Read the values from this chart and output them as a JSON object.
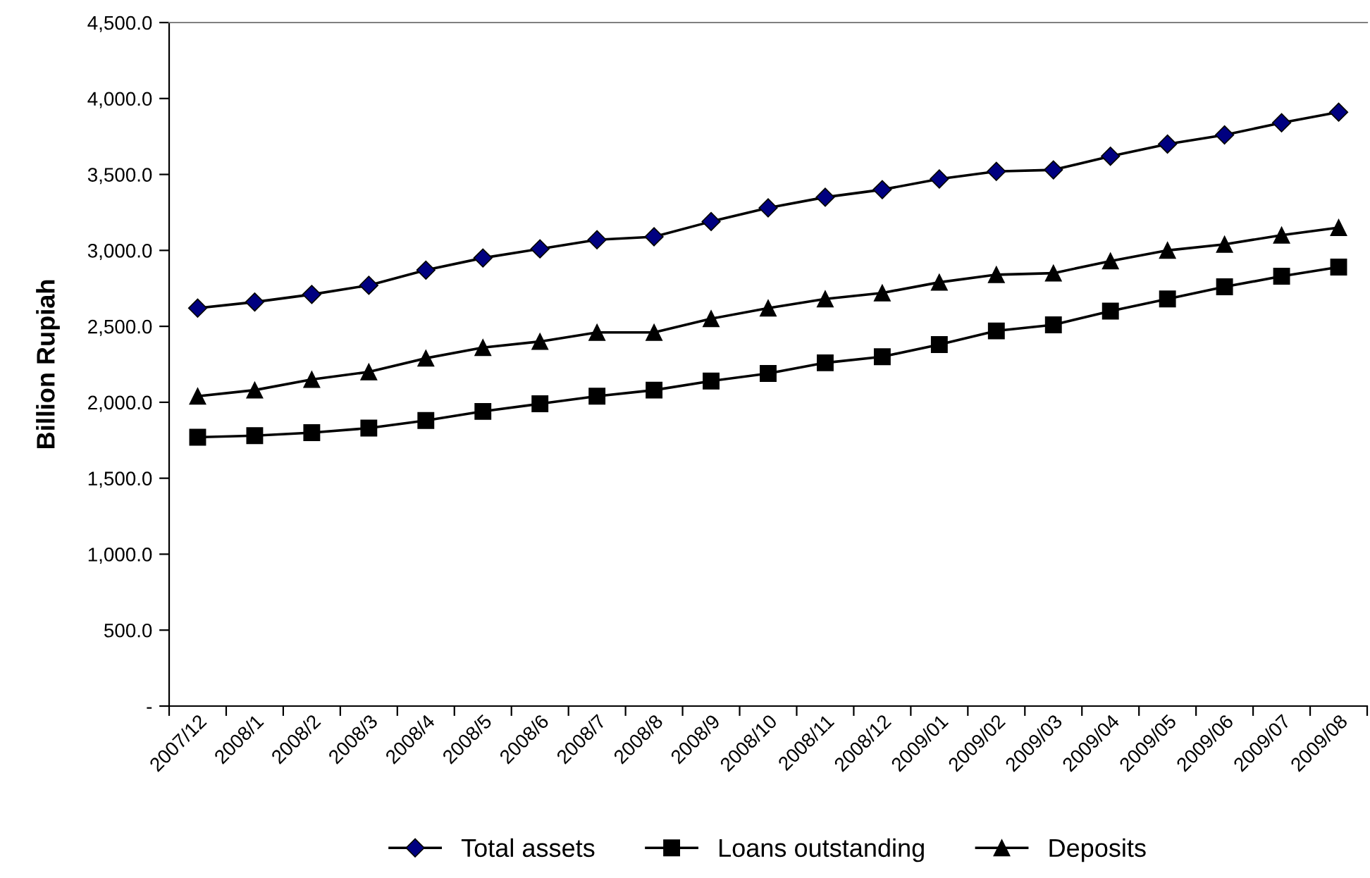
{
  "chart_data": {
    "type": "line",
    "ylabel": "Billion Rupiah",
    "categories": [
      "2007/12",
      "2008/1",
      "2008/2",
      "2008/3",
      "2008/4",
      "2008/5",
      "2008/6",
      "2008/7",
      "2008/8",
      "2008/9",
      "2008/10",
      "2008/11",
      "2008/12",
      "2009/01",
      "2009/02",
      "2009/03",
      "2009/04",
      "2009/05",
      "2009/06",
      "2009/07",
      "2009/08"
    ],
    "series": [
      {
        "name": "Total assets",
        "color": "#000080",
        "marker": "diamond",
        "values": [
          2620,
          2660,
          2710,
          2770,
          2870,
          2950,
          3010,
          3070,
          3090,
          3190,
          3280,
          3350,
          3400,
          3470,
          3520,
          3530,
          3620,
          3700,
          3760,
          3840,
          3910
        ]
      },
      {
        "name": "Loans outstanding",
        "color": "#000000",
        "marker": "square",
        "values": [
          1770,
          1780,
          1800,
          1830,
          1880,
          1940,
          1990,
          2040,
          2080,
          2140,
          2190,
          2260,
          2300,
          2380,
          2470,
          2510,
          2600,
          2680,
          2760,
          2830,
          2890
        ]
      },
      {
        "name": "Deposits",
        "color": "#000000",
        "marker": "triangle",
        "values": [
          2040,
          2080,
          2150,
          2200,
          2290,
          2360,
          2400,
          2460,
          2460,
          2550,
          2620,
          2680,
          2720,
          2790,
          2840,
          2850,
          2930,
          3000,
          3040,
          3100,
          3150
        ]
      }
    ],
    "ylim": [
      0,
      4500
    ],
    "yticks": [
      {
        "value": 0,
        "label": "-"
      },
      {
        "value": 500,
        "label": "500.0"
      },
      {
        "value": 1000,
        "label": "1,000.0"
      },
      {
        "value": 1500,
        "label": "1,500.0"
      },
      {
        "value": 2000,
        "label": "2,000.0"
      },
      {
        "value": 2500,
        "label": "2,500.0"
      },
      {
        "value": 3000,
        "label": "3,000.0"
      },
      {
        "value": 3500,
        "label": "3,500.0"
      },
      {
        "value": 4000,
        "label": "4,000.0"
      },
      {
        "value": 4500,
        "label": "4,500.0"
      }
    ],
    "grid": false,
    "legend": "bottom",
    "line_style": "solid"
  }
}
